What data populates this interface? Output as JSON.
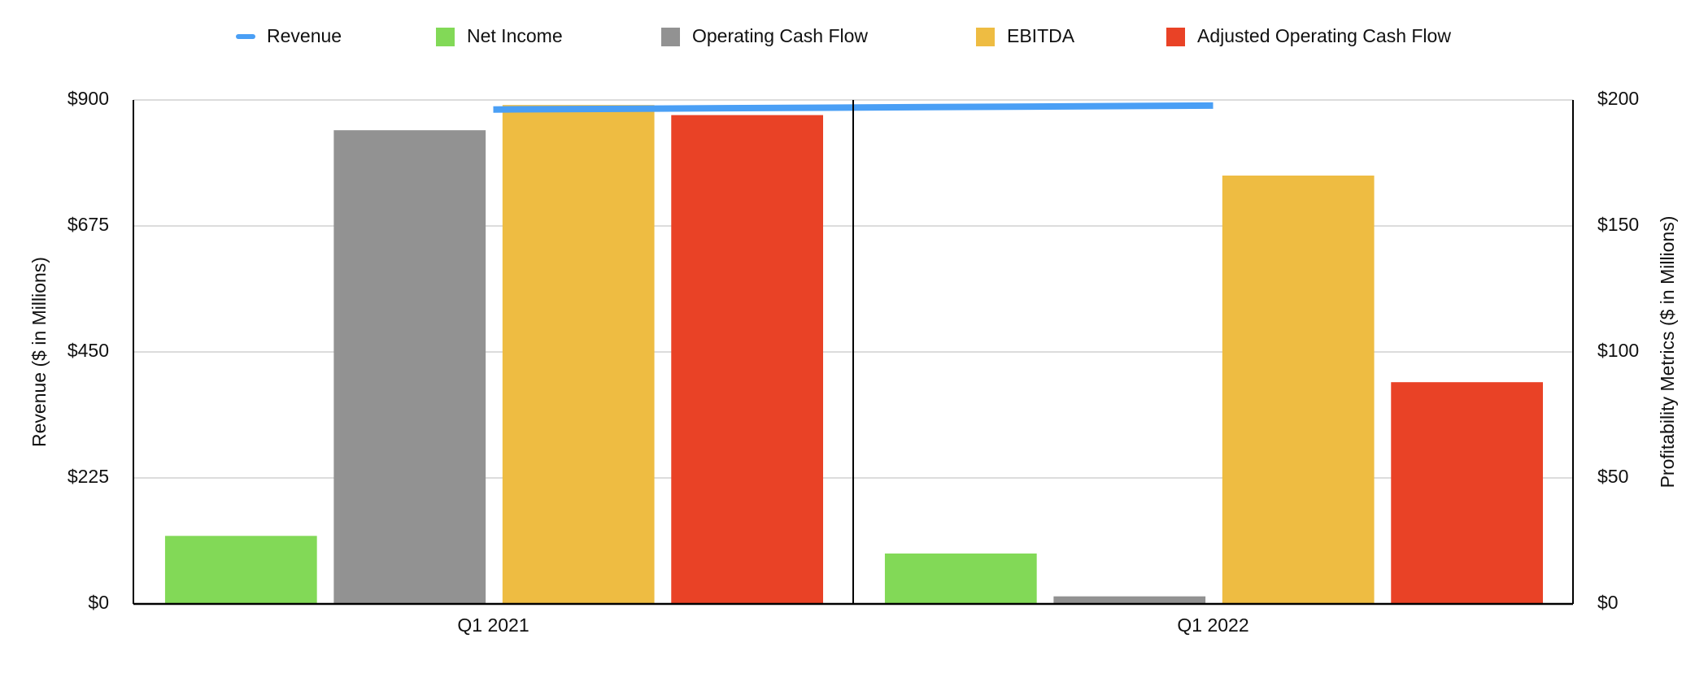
{
  "chart_data": {
    "type": "bar",
    "categories": [
      "Q1 2021",
      "Q1 2022"
    ],
    "series": [
      {
        "name": "Revenue",
        "type": "line",
        "color": "#4a9ff5",
        "values": [
          883,
          890
        ]
      },
      {
        "name": "Net Income",
        "color": "#82d957",
        "axis": "y2",
        "values": [
          27,
          20
        ]
      },
      {
        "name": "Operating Cash Flow",
        "color": "#929292",
        "axis": "y2",
        "values": [
          188,
          3
        ]
      },
      {
        "name": "EBITDA",
        "color": "#eebc42",
        "axis": "y2",
        "values": [
          198,
          170
        ]
      },
      {
        "name": "Adjusted Operating Cash Flow",
        "color": "#e94226",
        "axis": "y2",
        "values": [
          194,
          88
        ]
      }
    ],
    "y_label": "Revenue ($ in Millions)",
    "y2_label": "Profitability Metrics ($ in Millions)",
    "ylim": [
      0,
      900
    ],
    "yticks": [
      {
        "value": 0,
        "label": "$0"
      },
      {
        "value": 225,
        "label": "$225"
      },
      {
        "value": 450,
        "label": "$450"
      },
      {
        "value": 675,
        "label": "$675"
      },
      {
        "value": 900,
        "label": "$900"
      }
    ],
    "y2lim": [
      0,
      200
    ],
    "y2ticks": [
      {
        "value": 0,
        "label": "$0"
      },
      {
        "value": 50,
        "label": "$50"
      },
      {
        "value": 100,
        "label": "$100"
      },
      {
        "value": 150,
        "label": "$150"
      },
      {
        "value": 200,
        "label": "$200"
      }
    ],
    "grid": true,
    "legend": "top"
  }
}
